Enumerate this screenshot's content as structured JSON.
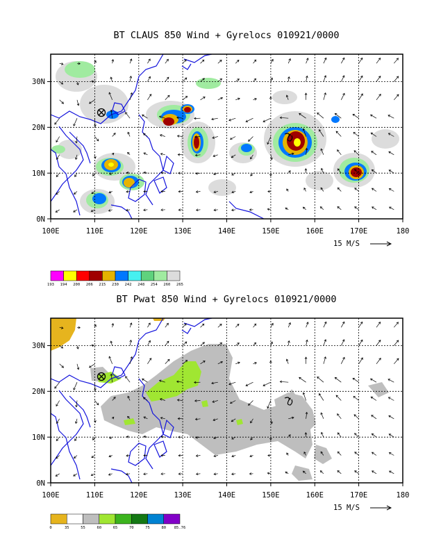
{
  "panels": [
    {
      "title": "BT CLAUS 850 Wind + Gyrelocs 010921/0000",
      "x_ticks": [
        "100E",
        "110E",
        "120E",
        "130E",
        "140E",
        "150E",
        "160E",
        "170E",
        "180"
      ],
      "y_ticks": [
        "0N",
        "10N",
        "20N",
        "30N"
      ],
      "vector_ref": "15 M/S",
      "colorbar": {
        "labels": [
          "193",
          "194",
          "200",
          "206",
          "215",
          "230",
          "242",
          "248",
          "254",
          "260",
          "265"
        ],
        "colors": [
          "#ff00ff",
          "#ffff00",
          "#ff0000",
          "#a00000",
          "#e6b400",
          "#0078ff",
          "#46f0f0",
          "#5fd27d",
          "#a0eba0",
          "#dcdcdc"
        ]
      }
    },
    {
      "title": "BT Pwat 850 Wind + Gyrelocs 010921/0000",
      "x_ticks": [
        "100E",
        "110E",
        "120E",
        "130E",
        "140E",
        "150E",
        "160E",
        "170E",
        "180"
      ],
      "y_ticks": [
        "0N",
        "10N",
        "20N",
        "30N"
      ],
      "vector_ref": "15 M/S",
      "colorbar": {
        "labels": [
          "0",
          "35",
          "55",
          "60",
          "65",
          "70",
          "75",
          "80",
          "85.76"
        ],
        "colors": [
          "#e6b41e",
          "#ffffff",
          "#bebebe",
          "#a0e632",
          "#3cb41e",
          "#147814",
          "#0082d2",
          "#8200c8"
        ]
      }
    }
  ],
  "map": {
    "lon_range": [
      100,
      180
    ],
    "lat_range": [
      0,
      36
    ],
    "grid_spacing_deg": 10,
    "gyre_markers": [
      {
        "symbol": "circled-x",
        "lon": 111.5,
        "lat": 22.8
      },
      {
        "symbol": "tropical-cyclone",
        "lon": 154.0,
        "lat": 18.5
      }
    ]
  }
}
